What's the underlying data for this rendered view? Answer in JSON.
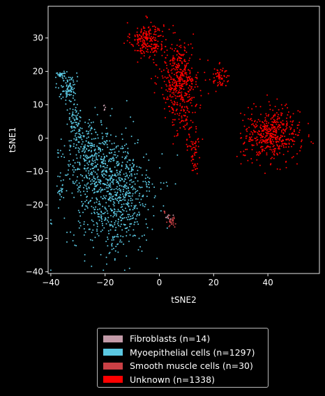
{
  "chart_data": {
    "type": "scatter",
    "xlabel": "tSNE2",
    "ylabel": "tSNE1",
    "xlim": [
      -41,
      59
    ],
    "ylim": [
      -40.5,
      39.5
    ],
    "xticks": [
      -40,
      -20,
      0,
      20,
      40
    ],
    "yticks": [
      -40,
      -30,
      -20,
      -10,
      0,
      10,
      20,
      30
    ],
    "legend_position": "below",
    "series": [
      {
        "name": "Fibroblasts (n=14)",
        "color": "#c29aa8",
        "count": 14,
        "clusters": [
          {
            "cx": -20.3,
            "cy": 8.8,
            "sx": 0.3,
            "sy": 0.5,
            "n": 6
          },
          {
            "cx": 3.2,
            "cy": -23.5,
            "sx": 0.8,
            "sy": 0.6,
            "n": 8
          }
        ]
      },
      {
        "name": "Myoepithelial cells (n=1297)",
        "color": "#5bc8e2",
        "count": 1297,
        "clusters": [
          {
            "cx": -17,
            "cy": -17,
            "sx": 7.5,
            "sy": 8.5,
            "n": 820
          },
          {
            "cx": -26,
            "cy": -5,
            "sx": 4.5,
            "sy": 5,
            "n": 260
          },
          {
            "cx": -31,
            "cy": 6,
            "sx": 1.4,
            "sy": 3.5,
            "n": 80
          },
          {
            "cx": -33.5,
            "cy": 15,
            "sx": 1.4,
            "sy": 2.2,
            "n": 90
          },
          {
            "cx": -36,
            "cy": 19,
            "sx": 1.0,
            "sy": 0.5,
            "n": 30
          },
          {
            "cx": -36.5,
            "cy": -15,
            "sx": 0.6,
            "sy": 1.5,
            "n": 17
          }
        ]
      },
      {
        "name": "Smooth muscle cells (n=30)",
        "color": "#c94045",
        "count": 30,
        "clusters": [
          {
            "cx": 4.2,
            "cy": -24.8,
            "sx": 0.7,
            "sy": 1.2,
            "n": 26
          },
          {
            "cx": 2,
            "cy": -22,
            "sx": 0.4,
            "sy": 0.4,
            "n": 4
          }
        ]
      },
      {
        "name": "Unknown (n=1338)",
        "color": "#ff0000",
        "count": 1338,
        "clusters": [
          {
            "cx": -4.5,
            "cy": 29.5,
            "sx": 3.0,
            "sy": 2.6,
            "n": 230
          },
          {
            "cx": 7.5,
            "cy": 18,
            "sx": 3.6,
            "sy": 5.2,
            "n": 420
          },
          {
            "cx": 8.5,
            "cy": 7,
            "sx": 2.2,
            "sy": 3.5,
            "n": 70
          },
          {
            "cx": 12.5,
            "cy": -1,
            "sx": 1.2,
            "sy": 2.5,
            "n": 40
          },
          {
            "cx": 13,
            "cy": -7.5,
            "sx": 0.8,
            "sy": 1.6,
            "n": 25
          },
          {
            "cx": 22.5,
            "cy": 18.5,
            "sx": 1.7,
            "sy": 1.6,
            "n": 65
          },
          {
            "cx": 41.5,
            "cy": 1,
            "sx": 5.2,
            "sy": 3.8,
            "n": 488
          }
        ]
      }
    ]
  }
}
